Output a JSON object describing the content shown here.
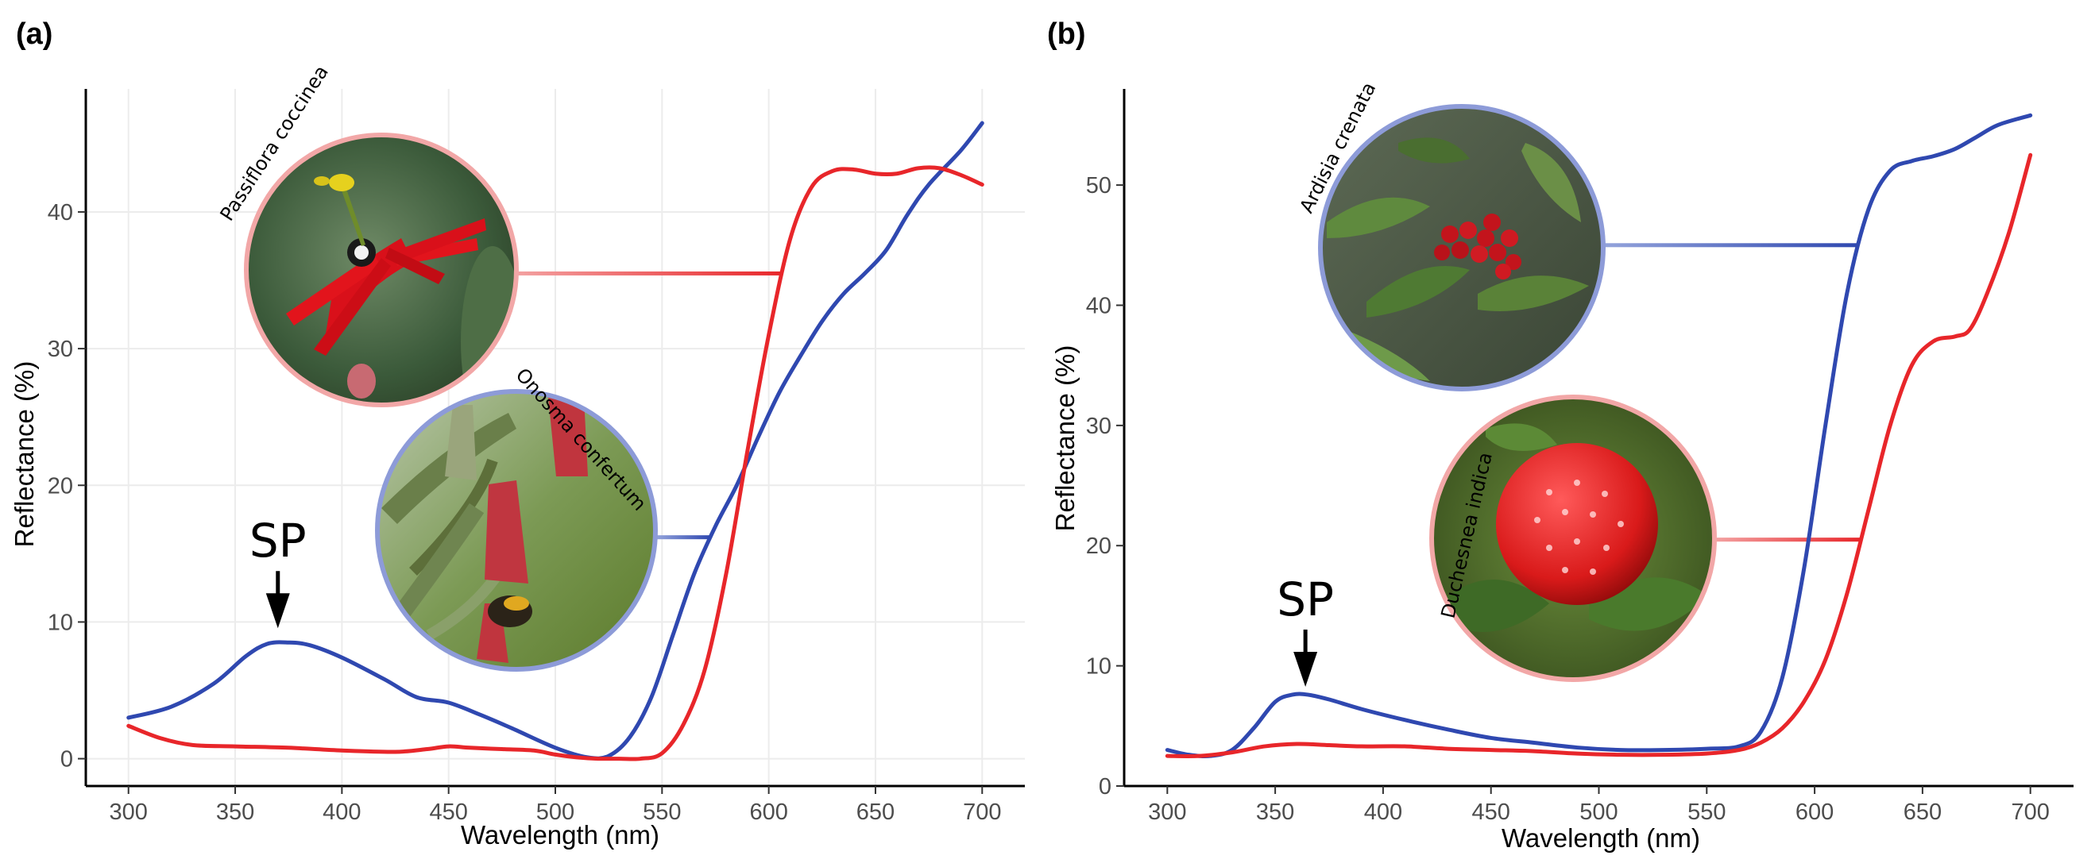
{
  "chart_data": [
    {
      "panel": "(a)",
      "type": "line",
      "xlabel": "Wavelength (nm)",
      "ylabel": "Reflectance (%)",
      "xlim": [
        280,
        720
      ],
      "ylim": [
        -2,
        49
      ],
      "xticks": [
        300,
        350,
        400,
        450,
        500,
        550,
        600,
        650,
        700
      ],
      "yticks": [
        0,
        10,
        20,
        30,
        40
      ],
      "grid": true,
      "series": [
        {
          "name": "Onosma confertum",
          "color": "#2f48b0",
          "x": [
            300,
            320,
            340,
            355,
            365,
            375,
            385,
            400,
            420,
            435,
            450,
            465,
            480,
            500,
            515,
            525,
            535,
            545,
            555,
            565,
            575,
            585,
            595,
            605,
            615,
            625,
            635,
            645,
            655,
            665,
            675,
            690,
            700
          ],
          "y": [
            3,
            3.8,
            5.5,
            7.5,
            8.4,
            8.5,
            8.3,
            7.4,
            5.8,
            4.5,
            4.1,
            3.2,
            2.2,
            0.8,
            0.1,
            0.2,
            1.6,
            4.5,
            9,
            13.5,
            17,
            20,
            23.5,
            26.8,
            29.5,
            32,
            34,
            35.5,
            37.2,
            39.8,
            42,
            44.5,
            46.5
          ]
        },
        {
          "name": "Passiflora coccinea",
          "color": "#e8262a",
          "x": [
            300,
            315,
            330,
            350,
            375,
            400,
            425,
            440,
            450,
            460,
            475,
            490,
            500,
            510,
            520,
            530,
            540,
            550,
            560,
            570,
            580,
            590,
            600,
            610,
            620,
            630,
            640,
            650,
            660,
            670,
            680,
            690,
            700
          ],
          "y": [
            2.4,
            1.5,
            1,
            0.9,
            0.8,
            0.6,
            0.5,
            0.7,
            0.9,
            0.8,
            0.7,
            0.6,
            0.3,
            0.1,
            0,
            0,
            0,
            0.4,
            2.5,
            6.5,
            13.5,
            22.5,
            31,
            38,
            41.8,
            43,
            43.1,
            42.8,
            42.8,
            43.2,
            43.2,
            42.7,
            42
          ]
        }
      ],
      "annotations": [
        {
          "text": "SP",
          "x": 370,
          "y": 8.5
        }
      ],
      "callouts": [
        {
          "species": "Passiflora coccinea",
          "series": "Passiflora coccinea",
          "y": 35.5
        },
        {
          "species": "Onosma confertum",
          "series": "Onosma confertum",
          "y": 16.2
        }
      ]
    },
    {
      "panel": "(b)",
      "type": "line",
      "xlabel": "Wavelength (nm)",
      "ylabel": "Reflectance (%)",
      "xlim": [
        280,
        720
      ],
      "ylim": [
        0,
        58
      ],
      "xticks": [
        300,
        350,
        400,
        450,
        500,
        550,
        600,
        650,
        700
      ],
      "yticks": [
        0,
        10,
        20,
        30,
        40,
        50
      ],
      "grid": false,
      "series": [
        {
          "name": "Ardisia crenata",
          "color": "#2f48b0",
          "x": [
            300,
            310,
            320,
            330,
            340,
            350,
            358,
            365,
            375,
            390,
            410,
            430,
            450,
            470,
            490,
            510,
            530,
            550,
            565,
            575,
            585,
            595,
            605,
            615,
            625,
            635,
            645,
            655,
            665,
            675,
            685,
            700
          ],
          "y": [
            3,
            2.6,
            2.5,
            3,
            4.8,
            7,
            7.6,
            7.6,
            7.2,
            6.4,
            5.5,
            4.7,
            4,
            3.6,
            3.2,
            3,
            3,
            3.1,
            3.3,
            4.5,
            9,
            18,
            30,
            41,
            48,
            51.2,
            52,
            52.4,
            53,
            54,
            55,
            55.8
          ]
        },
        {
          "name": "Duchesnea indica",
          "color": "#e8262a",
          "x": [
            300,
            315,
            330,
            345,
            360,
            375,
            390,
            410,
            430,
            450,
            470,
            490,
            510,
            530,
            550,
            565,
            575,
            585,
            595,
            605,
            615,
            625,
            635,
            645,
            655,
            665,
            672,
            680,
            690,
            700
          ],
          "y": [
            2.5,
            2.5,
            2.8,
            3.3,
            3.5,
            3.4,
            3.3,
            3.3,
            3.1,
            3,
            2.9,
            2.7,
            2.6,
            2.6,
            2.7,
            3,
            3.6,
            4.8,
            7,
            10.5,
            16,
            23,
            30,
            35,
            37,
            37.4,
            38,
            41,
            46,
            52.5
          ]
        }
      ],
      "annotations": [
        {
          "text": "SP",
          "x": 364,
          "y": 7.6
        }
      ],
      "callouts": [
        {
          "species": "Ardisia crenata",
          "series": "Ardisia crenata",
          "y": 45
        },
        {
          "species": "Duchesnea indica",
          "series": "Duchesnea indica",
          "y": 20.5
        }
      ]
    }
  ]
}
